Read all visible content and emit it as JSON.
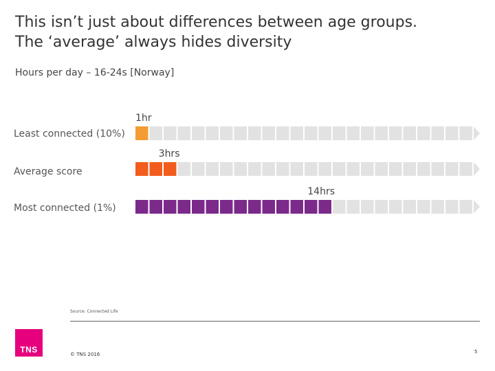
{
  "title": {
    "line1": "This isn’t just about differences between age groups.",
    "line2": "The ‘average’ always hides diversity"
  },
  "subtitle": "Hours per day – 16-24s [Norway]",
  "chart_data": {
    "type": "bar",
    "style": "pictogram-blocks",
    "unit": "hours per day",
    "max_units": 24,
    "categories": [
      "Least connected (10%)",
      "Average score",
      "Most connected (1%)"
    ],
    "values": [
      1,
      3,
      14
    ],
    "data_labels": [
      "1hr",
      "3hrs",
      "14hrs"
    ],
    "colors": [
      "#f39c34",
      "#f25c1c",
      "#7b2a8a"
    ],
    "empty_color": "#e2e2e2"
  },
  "footer": {
    "source": "Source: Connected Life",
    "logo": "TNS",
    "copyright": "© TNS 2016",
    "page_number": "5"
  }
}
